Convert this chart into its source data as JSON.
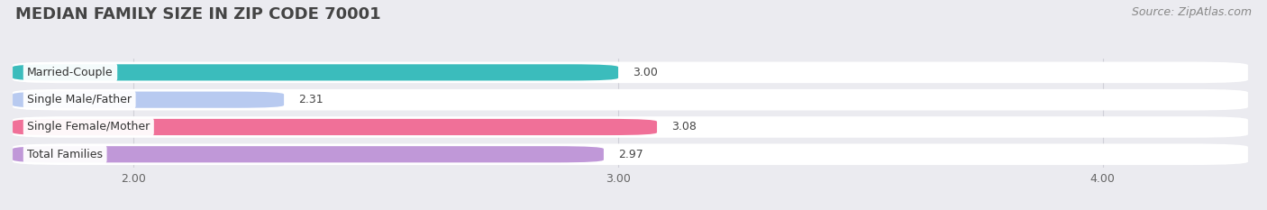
{
  "title": "MEDIAN FAMILY SIZE IN ZIP CODE 70001",
  "source": "Source: ZipAtlas.com",
  "categories": [
    "Married-Couple",
    "Single Male/Father",
    "Single Female/Mother",
    "Total Families"
  ],
  "values": [
    3.0,
    2.31,
    3.08,
    2.97
  ],
  "bar_colors": [
    "#3bbcbc",
    "#b8caf0",
    "#f07098",
    "#c098d8"
  ],
  "xlim": [
    1.75,
    4.3
  ],
  "xticks": [
    2.0,
    3.0,
    4.0
  ],
  "xtick_labels": [
    "2.00",
    "3.00",
    "4.00"
  ],
  "bg_color": "#ebebf0",
  "bar_bg_color": "#ffffff",
  "title_fontsize": 13,
  "source_fontsize": 9,
  "label_fontsize": 9,
  "value_fontsize": 9,
  "tick_fontsize": 9
}
